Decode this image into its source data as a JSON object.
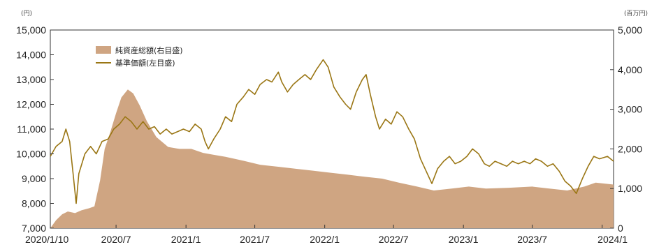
{
  "chart_data": {
    "type": "line",
    "left_unit": "(円)",
    "right_unit": "(百万円)",
    "left_axis": {
      "min": 7000,
      "max": 15000,
      "step": 1000,
      "ticks": [
        "7,000",
        "8,000",
        "9,000",
        "10,000",
        "11,000",
        "12,000",
        "13,000",
        "14,000",
        "15,000"
      ]
    },
    "right_axis": {
      "min": 0,
      "max": 5000,
      "step": 1000,
      "ticks": [
        "0",
        "1,000",
        "2,000",
        "3,000",
        "4,000",
        "5,000"
      ]
    },
    "x_ticks": [
      {
        "date": "2020-01-10",
        "label": "2020/1/10"
      },
      {
        "date": "2020-07-01",
        "label": "2020/7"
      },
      {
        "date": "2021-01-01",
        "label": "2021/1"
      },
      {
        "date": "2021-07-01",
        "label": "2021/7"
      },
      {
        "date": "2022-01-01",
        "label": "2022/1"
      },
      {
        "date": "2022-07-01",
        "label": "2022/7"
      },
      {
        "date": "2023-01-01",
        "label": "2023/1"
      },
      {
        "date": "2023-07-01",
        "label": "2023/7"
      },
      {
        "date": "2024-01-01",
        "label": "2024/1"
      }
    ],
    "x_range": [
      "2020-01-10",
      "2024-01-31"
    ],
    "legend_position": "top-left",
    "grid": false,
    "colors": {
      "area": "#cfa582",
      "line": "#9a7614"
    },
    "series": [
      {
        "name": "純資産総額(右目盛)",
        "kind": "area",
        "axis": "right",
        "points": [
          [
            "2020-01-10",
            0
          ],
          [
            "2020-01-25",
            200
          ],
          [
            "2020-02-10",
            350
          ],
          [
            "2020-02-25",
            420
          ],
          [
            "2020-03-15",
            380
          ],
          [
            "2020-04-01",
            450
          ],
          [
            "2020-04-20",
            500
          ],
          [
            "2020-05-05",
            550
          ],
          [
            "2020-05-20",
            1200
          ],
          [
            "2020-06-01",
            2000
          ],
          [
            "2020-06-15",
            2400
          ],
          [
            "2020-07-01",
            2900
          ],
          [
            "2020-07-15",
            3300
          ],
          [
            "2020-08-01",
            3500
          ],
          [
            "2020-08-15",
            3400
          ],
          [
            "2020-09-01",
            3100
          ],
          [
            "2020-09-20",
            2700
          ],
          [
            "2020-10-15",
            2300
          ],
          [
            "2020-11-15",
            2050
          ],
          [
            "2020-12-15",
            2000
          ],
          [
            "2021-01-15",
            2000
          ],
          [
            "2021-02-15",
            1900
          ],
          [
            "2021-03-15",
            1850
          ],
          [
            "2021-04-15",
            1800
          ],
          [
            "2021-06-01",
            1700
          ],
          [
            "2021-07-15",
            1600
          ],
          [
            "2021-09-01",
            1550
          ],
          [
            "2021-10-15",
            1500
          ],
          [
            "2021-12-01",
            1450
          ],
          [
            "2022-01-15",
            1400
          ],
          [
            "2022-03-01",
            1350
          ],
          [
            "2022-04-15",
            1300
          ],
          [
            "2022-06-01",
            1250
          ],
          [
            "2022-07-15",
            1150
          ],
          [
            "2022-09-01",
            1050
          ],
          [
            "2022-10-15",
            950
          ],
          [
            "2022-12-01",
            1000
          ],
          [
            "2023-01-15",
            1050
          ],
          [
            "2023-03-01",
            1000
          ],
          [
            "2023-05-01",
            1020
          ],
          [
            "2023-07-01",
            1050
          ],
          [
            "2023-08-15",
            1000
          ],
          [
            "2023-10-01",
            950
          ],
          [
            "2023-11-15",
            1050
          ],
          [
            "2023-12-15",
            1150
          ],
          [
            "2024-01-31",
            1100
          ]
        ]
      },
      {
        "name": "基準価額(左目盛)",
        "kind": "line",
        "axis": "left",
        "points": [
          [
            "2020-01-10",
            9900
          ],
          [
            "2020-01-25",
            10300
          ],
          [
            "2020-02-10",
            10500
          ],
          [
            "2020-02-20",
            11000
          ],
          [
            "2020-03-01",
            10500
          ],
          [
            "2020-03-10",
            9200
          ],
          [
            "2020-03-18",
            8000
          ],
          [
            "2020-03-25",
            9200
          ],
          [
            "2020-04-10",
            10000
          ],
          [
            "2020-04-25",
            10300
          ],
          [
            "2020-05-10",
            10000
          ],
          [
            "2020-05-25",
            10500
          ],
          [
            "2020-06-10",
            10600
          ],
          [
            "2020-06-25",
            11000
          ],
          [
            "2020-07-10",
            11200
          ],
          [
            "2020-07-25",
            11500
          ],
          [
            "2020-08-10",
            11300
          ],
          [
            "2020-08-25",
            11000
          ],
          [
            "2020-09-10",
            11300
          ],
          [
            "2020-09-25",
            11000
          ],
          [
            "2020-10-10",
            11100
          ],
          [
            "2020-10-25",
            10800
          ],
          [
            "2020-11-10",
            11000
          ],
          [
            "2020-11-25",
            10800
          ],
          [
            "2020-12-10",
            10900
          ],
          [
            "2020-12-25",
            11000
          ],
          [
            "2021-01-10",
            10900
          ],
          [
            "2021-01-25",
            11200
          ],
          [
            "2021-02-10",
            11000
          ],
          [
            "2021-02-20",
            10500
          ],
          [
            "2021-03-01",
            10200
          ],
          [
            "2021-03-15",
            10600
          ],
          [
            "2021-04-01",
            11000
          ],
          [
            "2021-04-15",
            11500
          ],
          [
            "2021-05-01",
            11300
          ],
          [
            "2021-05-15",
            12000
          ],
          [
            "2021-06-01",
            12300
          ],
          [
            "2021-06-15",
            12600
          ],
          [
            "2021-07-01",
            12400
          ],
          [
            "2021-07-15",
            12800
          ],
          [
            "2021-08-01",
            13000
          ],
          [
            "2021-08-15",
            12900
          ],
          [
            "2021-09-01",
            13300
          ],
          [
            "2021-09-10",
            12900
          ],
          [
            "2021-09-25",
            12500
          ],
          [
            "2021-10-10",
            12800
          ],
          [
            "2021-10-25",
            13000
          ],
          [
            "2021-11-10",
            13200
          ],
          [
            "2021-11-25",
            13000
          ],
          [
            "2021-12-10",
            13400
          ],
          [
            "2021-12-28",
            13800
          ],
          [
            "2022-01-10",
            13500
          ],
          [
            "2022-01-25",
            12700
          ],
          [
            "2022-02-10",
            12300
          ],
          [
            "2022-02-25",
            12000
          ],
          [
            "2022-03-10",
            11800
          ],
          [
            "2022-03-25",
            12500
          ],
          [
            "2022-04-10",
            13000
          ],
          [
            "2022-04-20",
            13200
          ],
          [
            "2022-05-01",
            12400
          ],
          [
            "2022-05-15",
            11500
          ],
          [
            "2022-05-25",
            11000
          ],
          [
            "2022-06-10",
            11400
          ],
          [
            "2022-06-25",
            11200
          ],
          [
            "2022-07-10",
            11700
          ],
          [
            "2022-07-25",
            11500
          ],
          [
            "2022-08-10",
            11000
          ],
          [
            "2022-08-25",
            10600
          ],
          [
            "2022-09-10",
            9800
          ],
          [
            "2022-09-25",
            9300
          ],
          [
            "2022-10-10",
            8800
          ],
          [
            "2022-10-25",
            9400
          ],
          [
            "2022-11-10",
            9700
          ],
          [
            "2022-11-25",
            9900
          ],
          [
            "2022-12-10",
            9600
          ],
          [
            "2022-12-25",
            9700
          ],
          [
            "2023-01-10",
            9900
          ],
          [
            "2023-01-25",
            10200
          ],
          [
            "2023-02-10",
            10000
          ],
          [
            "2023-02-25",
            9600
          ],
          [
            "2023-03-10",
            9500
          ],
          [
            "2023-03-25",
            9700
          ],
          [
            "2023-04-10",
            9600
          ],
          [
            "2023-04-25",
            9500
          ],
          [
            "2023-05-10",
            9700
          ],
          [
            "2023-05-25",
            9600
          ],
          [
            "2023-06-10",
            9700
          ],
          [
            "2023-06-25",
            9600
          ],
          [
            "2023-07-10",
            9800
          ],
          [
            "2023-07-25",
            9700
          ],
          [
            "2023-08-10",
            9500
          ],
          [
            "2023-08-25",
            9600
          ],
          [
            "2023-09-10",
            9300
          ],
          [
            "2023-09-25",
            8900
          ],
          [
            "2023-10-10",
            8700
          ],
          [
            "2023-10-25",
            8400
          ],
          [
            "2023-11-10",
            9000
          ],
          [
            "2023-11-25",
            9500
          ],
          [
            "2023-12-10",
            9900
          ],
          [
            "2023-12-25",
            9800
          ],
          [
            "2024-01-15",
            9900
          ],
          [
            "2024-01-31",
            9700
          ]
        ]
      }
    ]
  }
}
